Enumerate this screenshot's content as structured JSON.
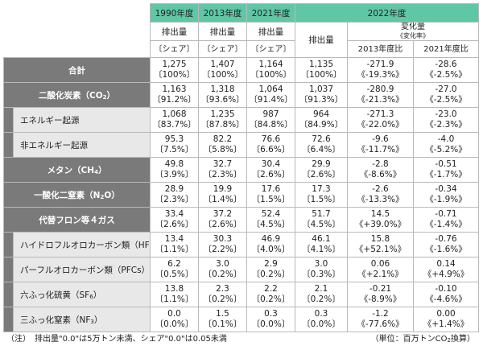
{
  "header": {
    "years": [
      "1990年度",
      "2013年度",
      "2021年度",
      "2022年度"
    ],
    "emissions_label": "排出量",
    "share_label": "〔シェア〕",
    "change_label": "変化量",
    "change_rate_label": "《変化率》",
    "vs_2013_label": "2013年度比",
    "vs_2021_label": "2021年度比"
  },
  "rows": [
    {
      "label": "合計",
      "kind": "main",
      "v1990": "1,275",
      "s1990": "〔100%〕",
      "v2013": "1,407",
      "s2013": "〔100%〕",
      "v2021": "1,164",
      "s2021": "〔100%〕",
      "v2022": "1,135",
      "s2022": "〔100%〕",
      "c2013": "-271.9",
      "r2013": "《-19.3%》",
      "c2021": "-28.6",
      "r2021": "《-2.5%》"
    },
    {
      "label": "二酸化炭素（CO",
      "label_sub": "2",
      "label_tail": "）",
      "kind": "main",
      "v1990": "1,163",
      "s1990": "〔91.2%〕",
      "v2013": "1,318",
      "s2013": "〔93.6%〕",
      "v2021": "1,064",
      "s2021": "〔91.4%〕",
      "v2022": "1,037",
      "s2022": "〔91.3%〕",
      "c2013": "-280.9",
      "r2013": "《-21.3%》",
      "c2021": "-27.0",
      "r2021": "《-2.5%》"
    },
    {
      "label": "エネルギー起源",
      "kind": "sub",
      "v1990": "1,068",
      "s1990": "〔83.7%〕",
      "v2013": "1,235",
      "s2013": "〔87.8%〕",
      "v2021": "987",
      "s2021": "〔84.8%〕",
      "v2022": "964",
      "s2022": "〔84.9%〕",
      "c2013": "-271.3",
      "r2013": "《-22.0%》",
      "c2021": "-23.0",
      "r2021": "《-2.3%》"
    },
    {
      "label": "非エネルギー起源",
      "kind": "sub",
      "v1990": "95.3",
      "s1990": "〔7.5%〕",
      "v2013": "82.2",
      "s2013": "〔5.8%〕",
      "v2021": "76.6",
      "s2021": "〔6.6%〕",
      "v2022": "72.6",
      "s2022": "〔6.4%〕",
      "c2013": "-9.6",
      "r2013": "《-11.7%》",
      "c2021": "-4.0",
      "r2021": "《-5.2%》"
    },
    {
      "label": "メタン（CH",
      "label_sub": "4",
      "label_tail": "）",
      "kind": "main",
      "v1990": "49.8",
      "s1990": "〔3.9%〕",
      "v2013": "32.7",
      "s2013": "〔2.3%〕",
      "v2021": "30.4",
      "s2021": "〔2.6%〕",
      "v2022": "29.9",
      "s2022": "〔2.6%〕",
      "c2013": "-2.8",
      "r2013": "《-8.6%》",
      "c2021": "-0.51",
      "r2021": "《-1.7%》"
    },
    {
      "label": "一酸化二窒素（N",
      "label_sub": "2",
      "label_tail": "O）",
      "kind": "main",
      "v1990": "28.9",
      "s1990": "〔2.3%〕",
      "v2013": "19.9",
      "s2013": "〔1.4%〕",
      "v2021": "17.6",
      "s2021": "〔1.5%〕",
      "v2022": "17.3",
      "s2022": "〔1.5%〕",
      "c2013": "-2.6",
      "r2013": "《-13.3%》",
      "c2021": "-0.34",
      "r2021": "《-1.9%》"
    },
    {
      "label": "代替フロン等４ガス",
      "kind": "main",
      "v1990": "33.4",
      "s1990": "〔2.6%〕",
      "v2013": "37.2",
      "s2013": "〔2.6%〕",
      "v2021": "52.4",
      "s2021": "〔4.5%〕",
      "v2022": "51.7",
      "s2022": "〔4.5%〕",
      "c2013": "14.5",
      "r2013": "《+39.0%》",
      "c2021": "-0.71",
      "r2021": "《-1.4%》"
    },
    {
      "label": "ハイドロフルオロカーボン類（HFCs）",
      "kind": "sub",
      "v1990": "13.4",
      "s1990": "〔1.1%〕",
      "v2013": "30.3",
      "s2013": "〔2.2%〕",
      "v2021": "46.9",
      "s2021": "〔4.0%〕",
      "v2022": "46.1",
      "s2022": "〔4.1%〕",
      "c2013": "15.8",
      "r2013": "《+52.1%》",
      "c2021": "-0.76",
      "r2021": "《-1.6%》"
    },
    {
      "label": "パーフルオロカーボン類（PFCs）",
      "kind": "sub",
      "v1990": "6.2",
      "s1990": "〔0.5%〕",
      "v2013": "3.0",
      "s2013": "〔0.2%〕",
      "v2021": "2.9",
      "s2021": "〔0.2%〕",
      "v2022": "3.0",
      "s2022": "〔0.3%〕",
      "c2013": "0.06",
      "r2013": "《+2.1%》",
      "c2021": "0.14",
      "r2021": "《+4.9%》"
    },
    {
      "label": "六ふっ化硫黄（SF",
      "label_sub": "6",
      "label_tail": "）",
      "kind": "sub",
      "v1990": "13.8",
      "s1990": "〔1.1%〕",
      "v2013": "2.3",
      "s2013": "〔0.2%〕",
      "v2021": "2.2",
      "s2021": "〔0.2%〕",
      "v2022": "2.1",
      "s2022": "〔0.2%〕",
      "c2013": "-0.21",
      "r2013": "《-8.9%》",
      "c2021": "-0.10",
      "r2021": "《-4.6%》"
    },
    {
      "label": "三ふっ化窒素（NF",
      "label_sub": "3",
      "label_tail": "）",
      "kind": "sub",
      "v1990": "0.0",
      "s1990": "〔0.0%〕",
      "v2013": "1.5",
      "s2013": "〔0.1%〕",
      "v2021": "0.3",
      "s2021": "〔0.0%〕",
      "v2022": "0.3",
      "s2022": "〔0.0%〕",
      "c2013": "-1.2",
      "r2013": "《-77.6%》",
      "c2021": "0.00",
      "r2021": "《+1.4%》"
    }
  ],
  "notes": {
    "left": "（注）　排出量\"0.0\"は5万トン未満、シェア\"0.0\"は0.05未満",
    "right_prefix": "（単位：百万トンCO",
    "right_sub": "2",
    "right_suffix": "換算）"
  },
  "colors": {
    "header_green": "#5fc7a6",
    "category_gray": "#7a7a7a",
    "subcategory_light": "#e8e8e8"
  }
}
